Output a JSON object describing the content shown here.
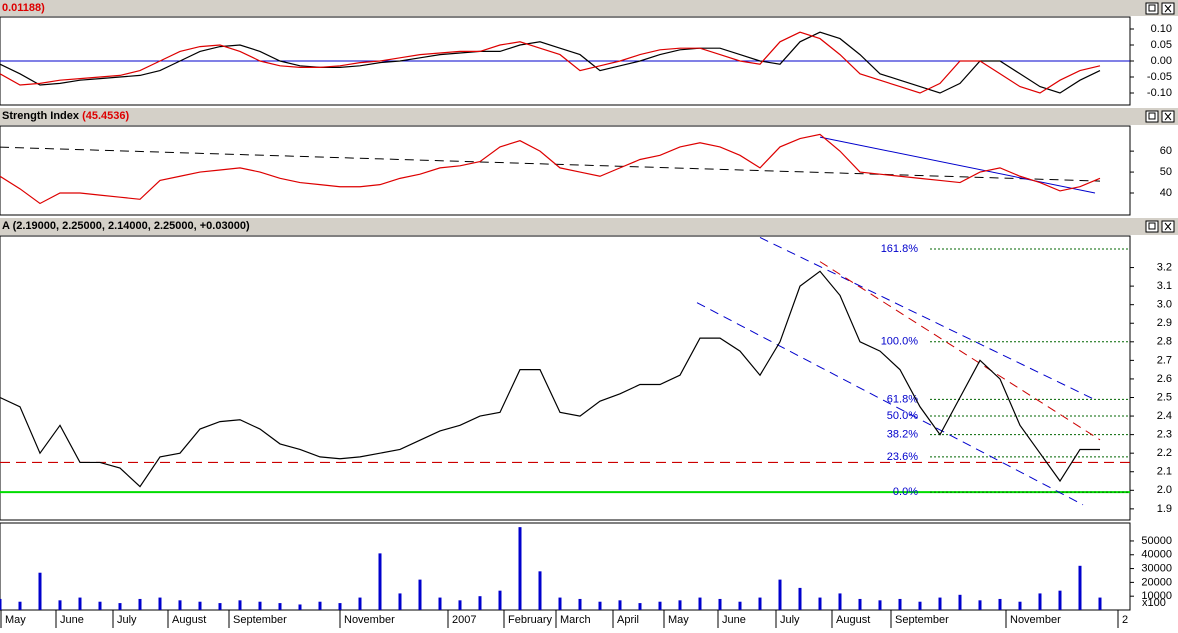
{
  "chart_data": [
    {
      "type": "line",
      "title": "0.01188)",
      "xlim": [
        0,
        113
      ],
      "x": [
        0,
        2,
        4,
        6,
        8,
        10,
        12,
        14,
        16,
        18,
        20,
        22,
        24,
        26,
        28,
        30,
        32,
        34,
        36,
        38,
        40,
        42,
        44,
        46,
        48,
        50,
        52,
        54,
        56,
        58,
        60,
        62,
        64,
        66,
        68,
        70,
        72,
        74,
        76,
        78,
        80,
        82,
        84,
        86,
        88,
        90,
        92,
        94,
        96,
        98,
        100,
        102,
        104,
        106,
        108,
        110
      ],
      "ylim": [
        -0.1375,
        0.1375
      ],
      "yticks": [
        {
          "value": 0.1,
          "label": "0.10"
        },
        {
          "value": 0.05,
          "label": "0.05"
        },
        {
          "value": 0,
          "label": "0.00"
        },
        {
          "value": -0.05,
          "label": "-0.05"
        },
        {
          "value": -0.1,
          "label": "-0.10"
        }
      ],
      "zero_line_color": "#0000cc",
      "series": [
        {
          "color": "#000000",
          "values": [
            -0.01,
            -0.04,
            -0.075,
            -0.07,
            -0.06,
            -0.055,
            -0.05,
            -0.045,
            -0.03,
            0.0,
            0.03,
            0.045,
            0.05,
            0.03,
            0.0,
            -0.015,
            -0.02,
            -0.02,
            -0.015,
            -0.005,
            0.0,
            0.01,
            0.02,
            0.025,
            0.03,
            0.03,
            0.05,
            0.06,
            0.04,
            0.02,
            -0.03,
            -0.015,
            0.0,
            0.02,
            0.035,
            0.04,
            0.04,
            0.02,
            0.0,
            -0.01,
            0.06,
            0.09,
            0.07,
            0.02,
            -0.04,
            -0.06,
            -0.08,
            -0.1,
            -0.07,
            0.0,
            0.0,
            -0.04,
            -0.08,
            -0.1,
            -0.06,
            -0.03
          ]
        },
        {
          "color": "#dd0000",
          "values": [
            -0.04,
            -0.075,
            -0.07,
            -0.06,
            -0.055,
            -0.05,
            -0.045,
            -0.03,
            0.0,
            0.03,
            0.045,
            0.05,
            0.03,
            0.0,
            -0.015,
            -0.02,
            -0.02,
            -0.015,
            -0.005,
            0.0,
            0.01,
            0.02,
            0.025,
            0.03,
            0.03,
            0.05,
            0.06,
            0.04,
            0.02,
            -0.03,
            -0.015,
            0.0,
            0.02,
            0.035,
            0.04,
            0.04,
            0.02,
            0.0,
            -0.01,
            0.06,
            0.09,
            0.07,
            0.02,
            -0.04,
            -0.06,
            -0.08,
            -0.1,
            -0.07,
            0.0,
            0.0,
            -0.04,
            -0.08,
            -0.1,
            -0.06,
            -0.03,
            -0.015
          ]
        }
      ]
    },
    {
      "type": "line",
      "title": "Strength Index",
      "subtitle": "(45.4536)",
      "xlim": [
        0,
        113
      ],
      "x": [
        0,
        2,
        4,
        6,
        8,
        10,
        12,
        14,
        16,
        18,
        20,
        22,
        24,
        26,
        28,
        30,
        32,
        34,
        36,
        38,
        40,
        42,
        44,
        46,
        48,
        50,
        52,
        54,
        56,
        58,
        60,
        62,
        64,
        66,
        68,
        70,
        72,
        74,
        76,
        78,
        80,
        82,
        84,
        86,
        88,
        90,
        92,
        94,
        96,
        98,
        100,
        102,
        104,
        106,
        108,
        110
      ],
      "ylim": [
        29.5,
        72
      ],
      "yticks": [
        40,
        50,
        60
      ],
      "series": [
        {
          "color": "#dd0000",
          "values": [
            48,
            42,
            35,
            40,
            40,
            39,
            38,
            37,
            46,
            48,
            50,
            51,
            52,
            50,
            47,
            45,
            44,
            43,
            43,
            44,
            47,
            49,
            52,
            53,
            55,
            62,
            65,
            60,
            52,
            50,
            48,
            52,
            56,
            58,
            62,
            64,
            62,
            58,
            52,
            62,
            66,
            68,
            60,
            50,
            49,
            48,
            47,
            46,
            45,
            50,
            52,
            48,
            45,
            41,
            43,
            47
          ]
        }
      ],
      "trendlines": [
        {
          "color": "#000000",
          "dashed": true,
          "x": [
            0,
            110
          ],
          "y": [
            61.9,
            45.7
          ]
        },
        {
          "color": "#0000cc",
          "dashed": false,
          "x": [
            82,
            109.5
          ],
          "y": [
            66.7,
            40
          ]
        }
      ]
    },
    {
      "type": "line",
      "title": "A (2.19000, 2.25000, 2.14000, 2.25000, +0.03000)",
      "xlim": [
        0,
        113
      ],
      "x": [
        0,
        2,
        4,
        6,
        8,
        10,
        12,
        14,
        16,
        18,
        20,
        22,
        24,
        26,
        28,
        30,
        32,
        34,
        36,
        38,
        40,
        42,
        44,
        46,
        48,
        50,
        52,
        54,
        56,
        58,
        60,
        62,
        64,
        66,
        68,
        70,
        72,
        74,
        76,
        78,
        80,
        82,
        84,
        86,
        88,
        90,
        92,
        94,
        96,
        98,
        100,
        102,
        104,
        106,
        108,
        110
      ],
      "ylim": [
        1.84,
        3.37
      ],
      "yticks": [
        1.9,
        {
          "value": 2.0,
          "label": "2.0"
        },
        2.1,
        2.2,
        2.3,
        2.4,
        2.5,
        2.6,
        2.7,
        2.8,
        2.9,
        {
          "value": 3.0,
          "label": "3.0"
        },
        3.1,
        3.2
      ],
      "series": [
        {
          "color": "#000000",
          "values": [
            2.5,
            2.45,
            2.2,
            2.35,
            2.15,
            2.15,
            2.12,
            2.02,
            2.18,
            2.2,
            2.33,
            2.37,
            2.38,
            2.33,
            2.25,
            2.22,
            2.18,
            2.17,
            2.18,
            2.2,
            2.22,
            2.27,
            2.32,
            2.35,
            2.4,
            2.42,
            2.65,
            2.65,
            2.42,
            2.4,
            2.48,
            2.52,
            2.57,
            2.57,
            2.62,
            2.82,
            2.82,
            2.75,
            2.62,
            2.8,
            3.1,
            3.18,
            3.05,
            2.8,
            2.75,
            2.65,
            2.45,
            2.3,
            2.5,
            2.7,
            2.6,
            2.35,
            2.2,
            2.05,
            2.22,
            2.22
          ]
        }
      ],
      "fib_levels": [
        {
          "label": "161.8%",
          "value": 3.3
        },
        {
          "label": "100.0%",
          "value": 2.8
        },
        {
          "label": "61.8%",
          "value": 2.49
        },
        {
          "label": "50.0%",
          "value": 2.4
        },
        {
          "label": "38.2%",
          "value": 2.3
        },
        {
          "label": "23.6%",
          "value": 2.18
        },
        {
          "label": "0.0%",
          "value": 1.99
        }
      ],
      "hlines": [
        {
          "value": 2.15,
          "color": "#cc0000",
          "dashed": true
        },
        {
          "value": 1.99,
          "color": "#00dd00",
          "dashed": false
        }
      ],
      "trendlines": [
        {
          "color": "#0000cc",
          "dashed": true,
          "x": [
            76,
            109.5
          ],
          "y": [
            3.362,
            2.488
          ]
        },
        {
          "color": "#0000cc",
          "dashed": true,
          "x": [
            69.7,
            108.3
          ],
          "y": [
            3.011,
            1.922
          ]
        },
        {
          "color": "#cc0000",
          "dashed": true,
          "x": [
            82,
            110
          ],
          "y": [
            3.232,
            2.272
          ]
        }
      ]
    },
    {
      "type": "bar",
      "unit_label": "x100",
      "xlim": [
        0,
        113
      ],
      "x": [
        0,
        2,
        4,
        6,
        8,
        10,
        12,
        14,
        16,
        18,
        20,
        22,
        24,
        26,
        28,
        30,
        32,
        34,
        36,
        38,
        40,
        42,
        44,
        46,
        48,
        50,
        52,
        54,
        56,
        58,
        60,
        62,
        64,
        66,
        68,
        70,
        72,
        74,
        76,
        78,
        80,
        82,
        84,
        86,
        88,
        90,
        92,
        94,
        96,
        98,
        100,
        102,
        104,
        106,
        108,
        110
      ],
      "ylim": [
        0,
        63000
      ],
      "yticks": [
        10000,
        20000,
        30000,
        40000,
        50000
      ],
      "color": "#0000cc",
      "values": [
        8000,
        6000,
        27000,
        7000,
        9000,
        6000,
        5000,
        8000,
        9000,
        7000,
        6000,
        5000,
        7000,
        6000,
        5000,
        4000,
        6000,
        5000,
        9000,
        41000,
        12000,
        22000,
        9000,
        7000,
        10000,
        14000,
        60000,
        28000,
        9000,
        8000,
        6000,
        7000,
        5000,
        6000,
        7000,
        9000,
        8000,
        6000,
        9000,
        22000,
        16000,
        9000,
        12000,
        8000,
        7000,
        8000,
        6000,
        9000,
        11000,
        7000,
        8000,
        6000,
        12000,
        14000,
        32000,
        9000
      ],
      "xticks": [
        {
          "value": 0.5,
          "label": "May"
        },
        {
          "value": 6,
          "label": "June"
        },
        {
          "value": 11.7,
          "label": "July"
        },
        {
          "value": 17.2,
          "label": "August"
        },
        {
          "value": 23.3,
          "label": "September"
        },
        {
          "value": 34.4,
          "label": "November"
        },
        {
          "value": 45.2,
          "label": "2007"
        },
        {
          "value": 50.8,
          "label": "February"
        },
        {
          "value": 56,
          "label": "March"
        },
        {
          "value": 61.7,
          "label": "April"
        },
        {
          "value": 66.8,
          "label": "May"
        },
        {
          "value": 72.2,
          "label": "June"
        },
        {
          "value": 78,
          "label": "July"
        },
        {
          "value": 83.6,
          "label": "August"
        },
        {
          "value": 89.5,
          "label": "September"
        },
        {
          "value": 101,
          "label": "November"
        },
        {
          "value": 112.2,
          "label": "2"
        }
      ]
    }
  ]
}
